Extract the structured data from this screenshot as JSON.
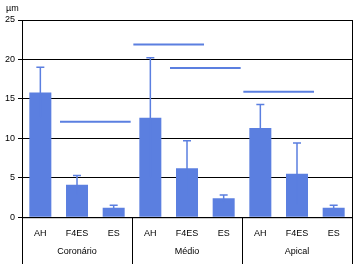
{
  "chart_data": {
    "type": "bar",
    "y_label": "µm",
    "categories": [
      "AH",
      "F4ES",
      "ES",
      "AH",
      "F4ES",
      "ES",
      "AH",
      "F4ES",
      "ES"
    ],
    "groups": [
      "Coronário",
      "Médio",
      "Apical"
    ],
    "values": [
      15.8,
      4.1,
      1.2,
      12.6,
      6.2,
      2.4,
      11.3,
      5.5,
      1.2
    ],
    "errors": [
      3.2,
      1.2,
      0.3,
      7.6,
      3.5,
      0.4,
      3.0,
      3.9,
      0.3
    ],
    "color": "#5b7fe0",
    "ylim": [
      0,
      25
    ],
    "yticks": [
      0,
      5,
      10,
      15,
      20,
      25
    ],
    "grid": true,
    "significance_lines": [
      {
        "from": 1,
        "to": 2,
        "y": 12.1
      },
      {
        "from": 3,
        "to": 4,
        "y": 21.9
      },
      {
        "from": 4,
        "to": 5,
        "y": 18.9
      },
      {
        "from": 6,
        "to": 7,
        "y": 15.9
      }
    ]
  }
}
